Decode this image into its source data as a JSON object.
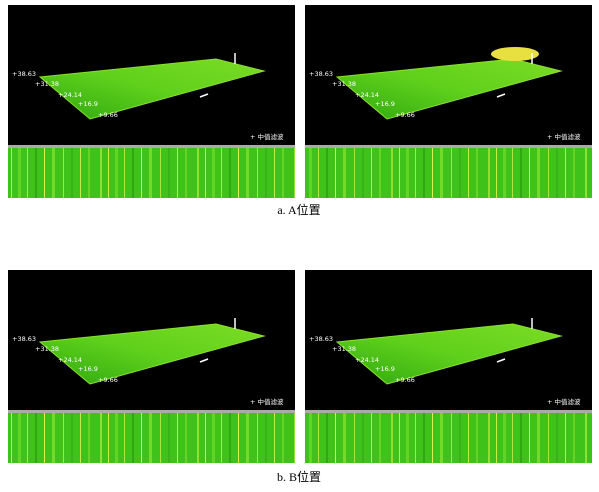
{
  "figures": [
    {
      "caption": "a. A位置",
      "panels": [
        {
          "axis_labels": [
            "+38.63",
            "+31.38",
            "+24.14",
            "+16.9",
            "+9.66"
          ],
          "filter_label": "+ 中值滤波"
        },
        {
          "axis_labels": [
            "+38.63",
            "+31.38",
            "+24.14",
            "+16.9",
            "+9.66"
          ],
          "filter_label": "+ 中值滤波"
        }
      ]
    },
    {
      "caption": "b. B位置",
      "panels": [
        {
          "axis_labels": [
            "+38.63",
            "+31.38",
            "+24.14",
            "+16.9",
            "+9.66"
          ],
          "filter_label": "+ 中值滤波"
        },
        {
          "axis_labels": [
            "+38.63",
            "+31.38",
            "+24.14",
            "+16.9",
            "+9.66"
          ],
          "filter_label": "+ 中值滤波"
        }
      ]
    }
  ]
}
